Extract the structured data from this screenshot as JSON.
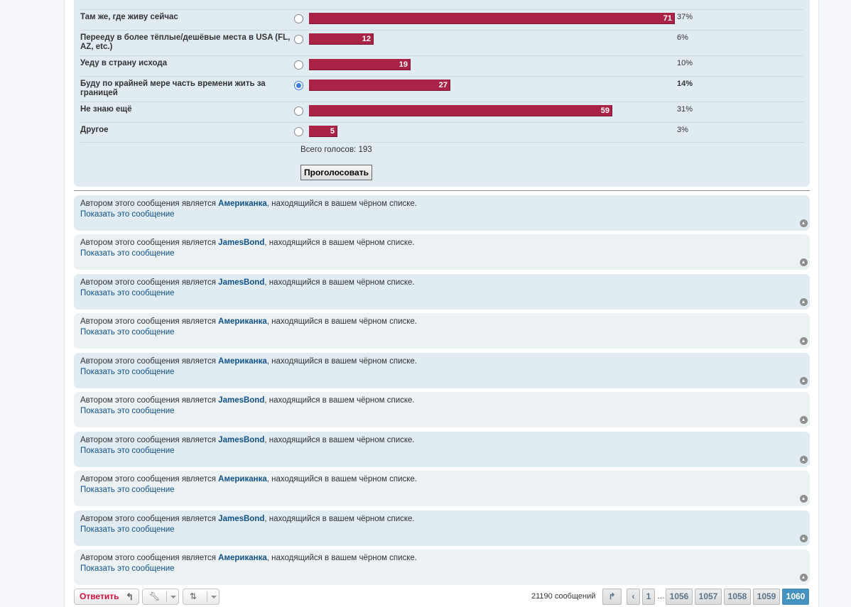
{
  "poll": {
    "options": [
      {
        "label": "Там же, где живу сейчас",
        "votes": "71",
        "percent": "37%",
        "fraction": 1.0,
        "selected": false
      },
      {
        "label": "Перееду в более тёплые/дешёвые места в USA (FL, AZ, etc.)",
        "votes": "12",
        "percent": "6%",
        "fraction": 0.177,
        "selected": false
      },
      {
        "label": "Уеду в страну исхода",
        "votes": "19",
        "percent": "10%",
        "fraction": 0.277,
        "selected": false
      },
      {
        "label": "Буду по крайней мере часть времени жить за границей",
        "votes": "27",
        "percent": "14%",
        "fraction": 0.386,
        "selected": true
      },
      {
        "label": "Не знаю ещё",
        "votes": "59",
        "percent": "31%",
        "fraction": 0.83,
        "selected": false
      },
      {
        "label": "Другое",
        "votes": "5",
        "percent": "3%",
        "fraction": 0.077,
        "selected": false
      }
    ],
    "total_label": "Всего голосов: 193",
    "vote_button": "Проголосовать"
  },
  "posts": {
    "prefix": "Автором этого сообщения является",
    "suffix": ", находящийся в вашем чёрном списке.",
    "show_label": "Показать это сообщение",
    "authors": [
      "Американка",
      "JamesBond",
      "JamesBond",
      "Американка",
      "Американка",
      "JamesBond",
      "JamesBond",
      "Американка",
      "JamesBond",
      "Американка"
    ]
  },
  "bottom": {
    "reply_label": "Ответить",
    "reply_icon": "reply-arrow-icon",
    "tools_icon": "wrench-icon",
    "sort_icon": "sort-icon",
    "post_count": "21190 сообщений",
    "pages": [
      "1",
      "…",
      "1056",
      "1057",
      "1058",
      "1059",
      "1060"
    ],
    "current_page": "1060"
  },
  "colors": {
    "bar": "#aa2346",
    "post_blue": "#e1ebf2",
    "post_light": "#ecf1f3",
    "link": "#105289",
    "reply": "#d31141",
    "active_page": "#4692bf"
  }
}
